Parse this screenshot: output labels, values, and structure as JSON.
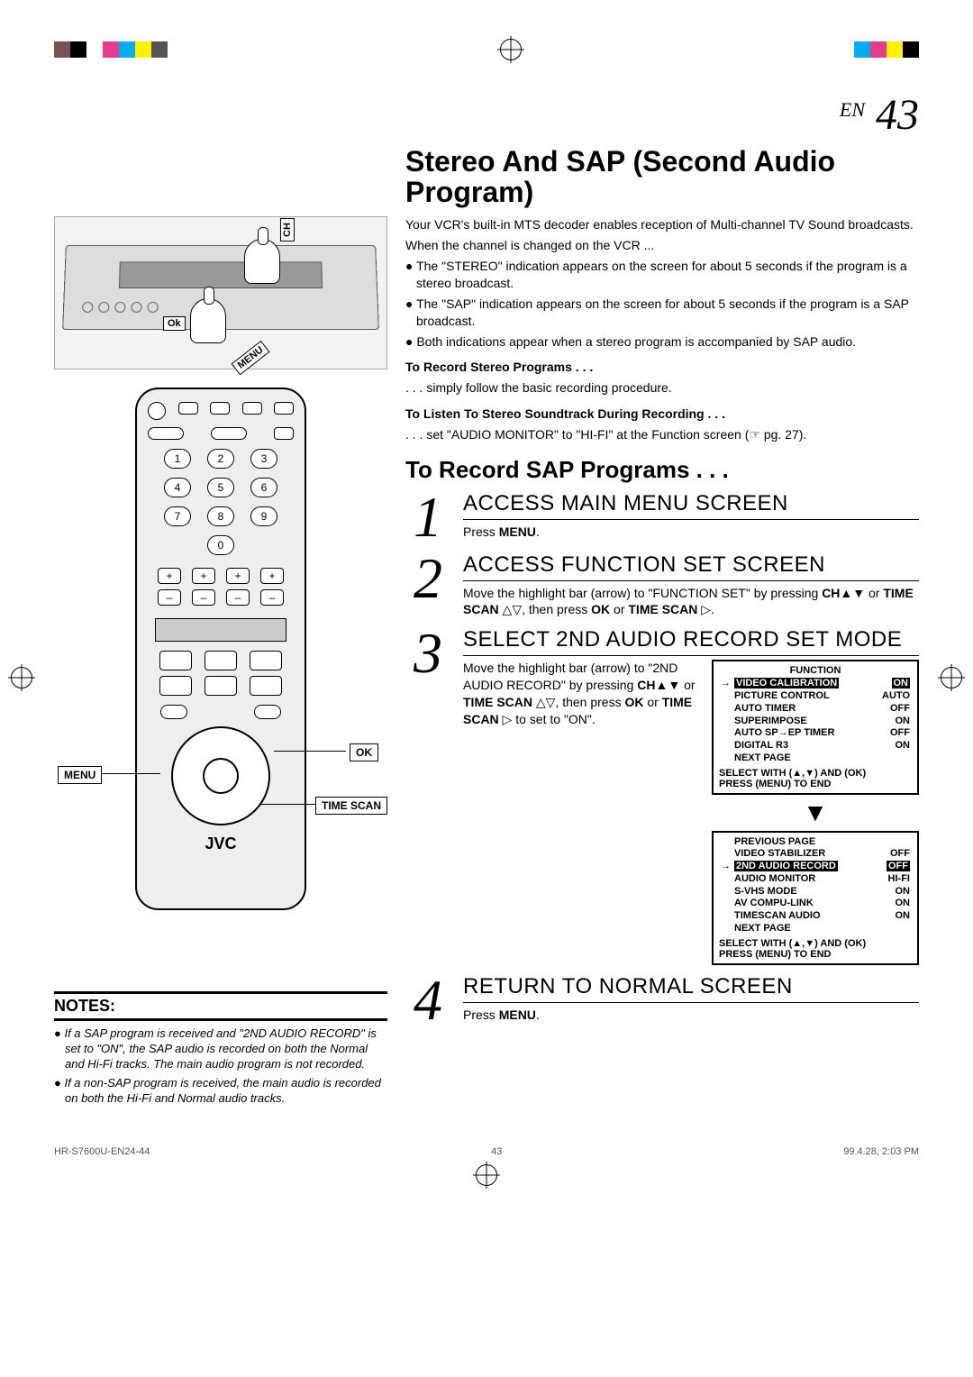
{
  "page": {
    "en_label": "EN",
    "number": "43"
  },
  "reg_colors_left": [
    "#7a5252",
    "#000000",
    "#ffffff",
    "#e53b8e",
    "#00adee",
    "#fdf300",
    "#555555"
  ],
  "reg_colors_right": [
    "#00adee",
    "#e53b8e",
    "#fdf300",
    "#000000"
  ],
  "main_title": "Stereo And SAP (Second Audio Program)",
  "vcr_labels": {
    "ch": "CH",
    "ok": "Ok",
    "menu": "MENU"
  },
  "intro": {
    "p1": "Your VCR's built-in MTS decoder enables reception of Multi-channel TV Sound broadcasts.",
    "p2": "When the channel is changed on the VCR ...",
    "b1": "● The \"STEREO\" indication appears on the screen for about 5 seconds if the program is a stereo broadcast.",
    "b2": "● The \"SAP\" indication appears on the screen for about 5 seconds if the program is a SAP broadcast.",
    "b3": "● Both indications appear when a stereo program is accompanied by SAP audio."
  },
  "rec_stereo_hdr": "To Record Stereo Programs . . .",
  "rec_stereo_txt": ". . . simply follow the basic recording procedure.",
  "listen_hdr": "To Listen To Stereo Soundtrack During Recording . . .",
  "listen_txt": ". . . set \"AUDIO MONITOR\" to \"HI-FI\" at the Function screen (☞ pg. 27).",
  "subheading": "To Record SAP Programs . . .",
  "steps": [
    {
      "num": "1",
      "title": "ACCESS MAIN MENU SCREEN",
      "text": "Press MENU."
    },
    {
      "num": "2",
      "title": "ACCESS FUNCTION SET SCREEN",
      "text": "Move the highlight bar (arrow) to \"FUNCTION SET\" by pressing CH▲▼ or TIME SCAN △▽, then press OK or TIME SCAN ▷."
    },
    {
      "num": "3",
      "title": "SELECT 2ND AUDIO RECORD SET MODE",
      "text": "Move the highlight bar (arrow) to \"2ND AUDIO RECORD\" by pressing CH▲▼ or TIME SCAN △▽, then press OK or TIME SCAN ▷ to set to \"ON\"."
    },
    {
      "num": "4",
      "title": "RETURN TO NORMAL SCREEN",
      "text": "Press MENU."
    }
  ],
  "osd1": {
    "title": "FUNCTION",
    "rows": [
      [
        "→",
        "VIDEO CALIBRATION",
        "ON"
      ],
      [
        "",
        "PICTURE CONTROL",
        "AUTO"
      ],
      [
        "",
        "AUTO TIMER",
        "OFF"
      ],
      [
        "",
        "SUPERIMPOSE",
        "ON"
      ],
      [
        "",
        "AUTO SP→EP TIMER",
        "OFF"
      ],
      [
        "",
        "DIGITAL R3",
        "ON"
      ],
      [
        "",
        "NEXT PAGE",
        ""
      ]
    ],
    "foot1": "SELECT WITH (▲,▼) AND (OK)",
    "foot2": "PRESS (MENU) TO END"
  },
  "osd2": {
    "rows": [
      [
        "",
        "PREVIOUS PAGE",
        ""
      ],
      [
        "",
        "VIDEO STABILIZER",
        "OFF"
      ],
      [
        "→",
        "2ND AUDIO RECORD",
        "OFF"
      ],
      [
        "",
        "AUDIO MONITOR",
        "HI-FI"
      ],
      [
        "",
        "S-VHS MODE",
        "ON"
      ],
      [
        "",
        "AV COMPU-LINK",
        "ON"
      ],
      [
        "",
        "TIMESCAN AUDIO",
        "ON"
      ],
      [
        "",
        "NEXT PAGE",
        ""
      ]
    ],
    "foot1": "SELECT WITH (▲,▼) AND (OK)",
    "foot2": "PRESS (MENU) TO END"
  },
  "remote": {
    "numbers": [
      "1",
      "2",
      "3",
      "4",
      "5",
      "6",
      "7",
      "8",
      "9",
      "0"
    ],
    "plus": "+",
    "minus": "–",
    "brand": "JVC",
    "callouts": {
      "ok": "OK",
      "menu": "MENU",
      "timescan": "TIME SCAN"
    }
  },
  "notes": {
    "header": "NOTES:",
    "items": [
      "● If a SAP program is received and \"2ND AUDIO RECORD\" is set to \"ON\", the SAP audio is recorded on both the Normal and Hi-Fi tracks. The main audio program is not recorded.",
      "● If a non-SAP program is received, the main audio is recorded on both the Hi-Fi and Normal audio tracks."
    ]
  },
  "footer": {
    "left": "HR-S7600U-EN24-44",
    "mid": "43",
    "right": "99.4.28, 2:03 PM"
  }
}
